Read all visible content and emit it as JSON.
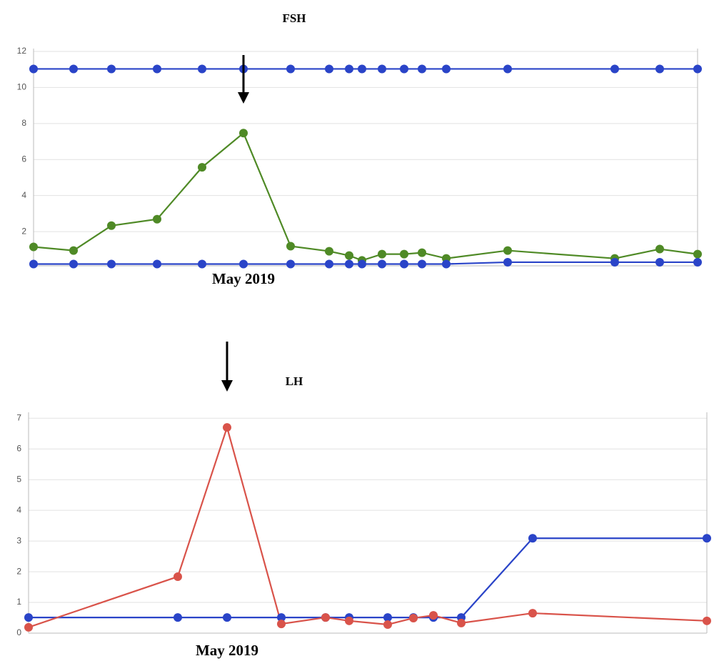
{
  "chart_data": [
    {
      "type": "line",
      "title": "FSH",
      "x": [
        0,
        56,
        109,
        173,
        236,
        294,
        360,
        414,
        442,
        460,
        488,
        519,
        544,
        578,
        664,
        814,
        877,
        930
      ],
      "xlim": [
        0,
        930
      ],
      "ylim": [
        0.1,
        12
      ],
      "yticks": [
        2,
        4,
        6,
        8,
        10,
        12
      ],
      "grid": true,
      "series": [
        {
          "color": "#2a44c8",
          "values": [
            11.03,
            11.03,
            11.03,
            11.03,
            11.03,
            11.03,
            11.03,
            11.03,
            11.03,
            11.03,
            11.03,
            11.03,
            11.03,
            11.03,
            11.03,
            11.03,
            11.03,
            11.03
          ]
        },
        {
          "color": "#4f8a26",
          "values": [
            1.15,
            0.95,
            2.33,
            2.69,
            5.57,
            7.47,
            1.19,
            0.91,
            0.67,
            0.4,
            0.75,
            0.75,
            0.83,
            0.51,
            0.95,
            0.51,
            1.03,
            0.75
          ]
        },
        {
          "color": "#2a44c8",
          "values": [
            0.2,
            0.2,
            0.2,
            0.2,
            0.2,
            0.2,
            0.2,
            0.2,
            0.2,
            0.2,
            0.2,
            0.2,
            0.2,
            0.2,
            0.3,
            0.3,
            0.3,
            0.3
          ]
        }
      ],
      "annotations": [
        {
          "text": "May 2019",
          "x": 294
        }
      ]
    },
    {
      "type": "line",
      "title": "LH",
      "x": [
        0,
        209,
        278,
        354,
        416,
        449,
        503,
        539,
        567,
        606,
        706,
        950
      ],
      "xlim": [
        0,
        950
      ],
      "ylim": [
        0,
        7.1
      ],
      "yticks": [
        0,
        1,
        2,
        3,
        4,
        5,
        6,
        7
      ],
      "grid": true,
      "series": [
        {
          "color": "#2a44c8",
          "values": [
            0.51,
            0.51,
            0.51,
            0.51,
            0.51,
            0.51,
            0.51,
            0.51,
            0.51,
            0.51,
            3.09,
            3.09
          ]
        },
        {
          "color": "#d9534a",
          "values": [
            0.19,
            1.84,
            6.7,
            0.3,
            0.51,
            0.4,
            0.28,
            0.49,
            0.58,
            0.33,
            0.65,
            0.4
          ]
        }
      ],
      "annotations": [
        {
          "text": "May 2019",
          "x": 278
        }
      ]
    }
  ]
}
